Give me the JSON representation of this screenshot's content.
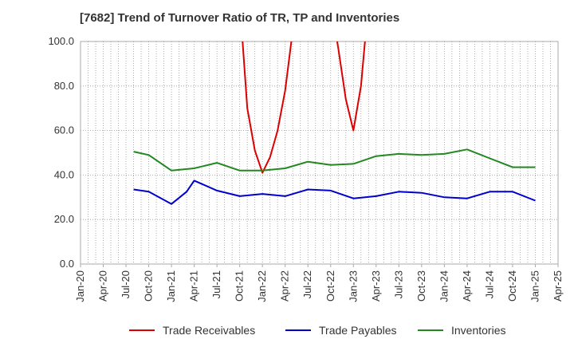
{
  "chart_data": {
    "type": "line",
    "title": "[7682]  Trend of Turnover Ratio of TR, TP and Inventories",
    "xlabel": "",
    "ylabel": "",
    "ylim": [
      0,
      100
    ],
    "y_ticks": [
      "0.0",
      "20.0",
      "40.0",
      "60.0",
      "80.0",
      "100.0"
    ],
    "x_ticks": [
      "Jan-20",
      "Apr-20",
      "Jul-20",
      "Oct-20",
      "Jan-21",
      "Apr-21",
      "Jul-21",
      "Oct-21",
      "Jan-22",
      "Apr-22",
      "Jul-22",
      "Oct-22",
      "Jan-23",
      "Apr-23",
      "Jul-23",
      "Oct-23",
      "Jan-24",
      "Apr-24",
      "Jul-24",
      "Oct-24",
      "Jan-25",
      "Apr-25"
    ],
    "grid": true,
    "legend_position": "bottom",
    "series": [
      {
        "name": "Trade Receivables",
        "color": "#dd0000",
        "points": [
          [
            "2021-10",
            118
          ],
          [
            "2021-11",
            70
          ],
          [
            "2021-12",
            51
          ],
          [
            "2022-01",
            41
          ],
          [
            "2022-02",
            48
          ],
          [
            "2022-03",
            60
          ],
          [
            "2022-04",
            78
          ],
          [
            "2022-05",
            105
          ],
          [
            "2022-10",
            118
          ],
          [
            "2022-11",
            97
          ],
          [
            "2022-12",
            74
          ],
          [
            "2023-01",
            60
          ],
          [
            "2023-02",
            80
          ],
          [
            "2023-03",
            118
          ]
        ]
      },
      {
        "name": "Trade Payables",
        "color": "#0000cc",
        "points": [
          [
            "2020-08",
            33.5
          ],
          [
            "2020-10",
            32.5
          ],
          [
            "2021-01",
            27
          ],
          [
            "2021-03",
            32.5
          ],
          [
            "2021-04",
            37.5
          ],
          [
            "2021-07",
            33
          ],
          [
            "2021-10",
            30.5
          ],
          [
            "2022-01",
            31.5
          ],
          [
            "2022-04",
            30.5
          ],
          [
            "2022-07",
            33.5
          ],
          [
            "2022-10",
            33
          ],
          [
            "2023-01",
            29.5
          ],
          [
            "2023-04",
            30.5
          ],
          [
            "2023-07",
            32.5
          ],
          [
            "2023-10",
            32
          ],
          [
            "2024-01",
            30
          ],
          [
            "2024-04",
            29.5
          ],
          [
            "2024-07",
            32.5
          ],
          [
            "2024-10",
            32.5
          ],
          [
            "2025-01",
            28.5
          ]
        ]
      },
      {
        "name": "Inventories",
        "color": "#228822",
        "points": [
          [
            "2020-08",
            50.5
          ],
          [
            "2020-10",
            49
          ],
          [
            "2021-01",
            42
          ],
          [
            "2021-04",
            43
          ],
          [
            "2021-07",
            45.5
          ],
          [
            "2021-10",
            42
          ],
          [
            "2022-01",
            42
          ],
          [
            "2022-04",
            43
          ],
          [
            "2022-07",
            46
          ],
          [
            "2022-10",
            44.5
          ],
          [
            "2023-01",
            45
          ],
          [
            "2023-04",
            48.5
          ],
          [
            "2023-07",
            49.5
          ],
          [
            "2023-10",
            49
          ],
          [
            "2024-01",
            49.5
          ],
          [
            "2024-04",
            51.5
          ],
          [
            "2024-07",
            47.5
          ],
          [
            "2024-10",
            43.5
          ],
          [
            "2025-01",
            43.5
          ]
        ]
      }
    ]
  }
}
